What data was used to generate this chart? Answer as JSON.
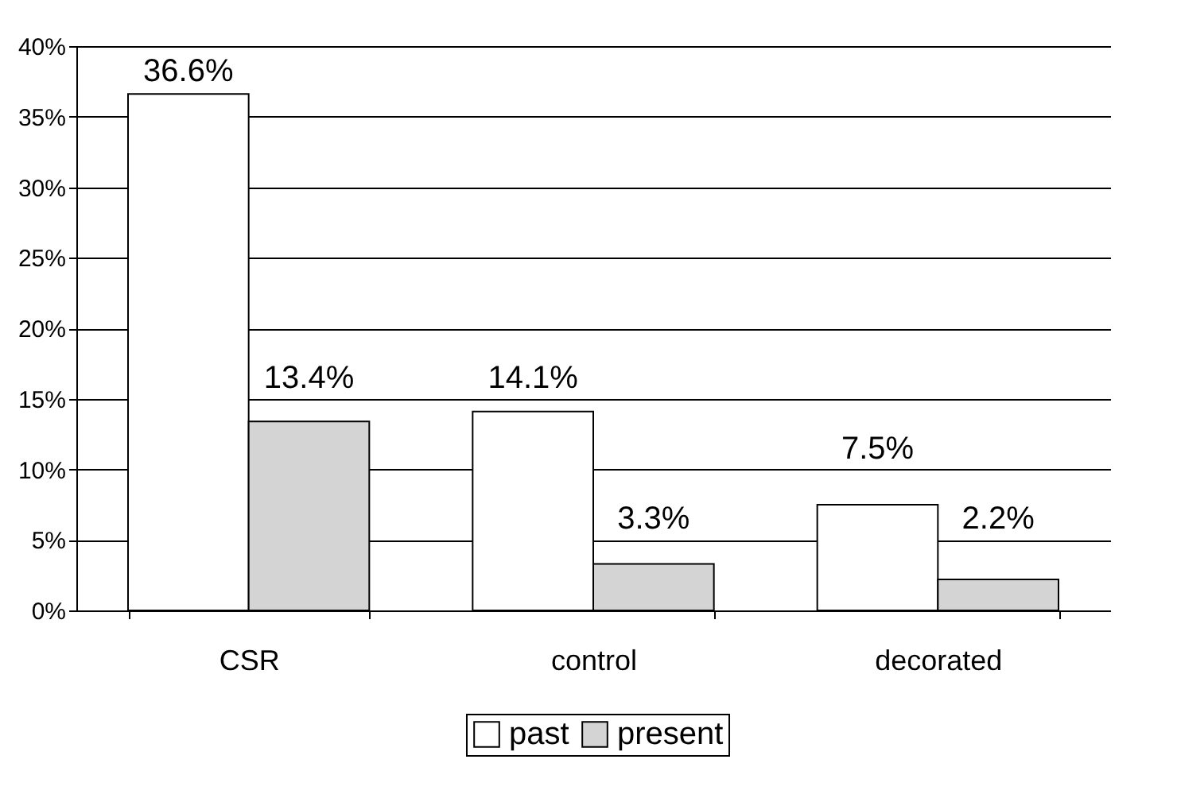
{
  "chart_data": {
    "type": "bar",
    "categories": [
      "CSR",
      "control",
      "decorated"
    ],
    "series": [
      {
        "name": "past",
        "color": "#ffffff",
        "values": [
          36.6,
          14.1,
          7.5
        ],
        "value_labels": [
          "36.6%",
          "14.1%",
          "7.5%"
        ]
      },
      {
        "name": "present",
        "color": "#d4d4d4",
        "values": [
          13.4,
          3.3,
          2.2
        ],
        "value_labels": [
          "13.4%",
          "3.3%",
          "2.2%"
        ]
      }
    ],
    "ylim": [
      0,
      40
    ],
    "yticks": [
      {
        "value": 0,
        "label": "0%"
      },
      {
        "value": 5,
        "label": "5%"
      },
      {
        "value": 10,
        "label": "10%"
      },
      {
        "value": 15,
        "label": "15%"
      },
      {
        "value": 20,
        "label": "20%"
      },
      {
        "value": 25,
        "label": "25%"
      },
      {
        "value": 30,
        "label": "30%"
      },
      {
        "value": 35,
        "label": "35%"
      },
      {
        "value": 40,
        "label": "40%"
      }
    ],
    "grid": "y",
    "legend": "bottom"
  }
}
